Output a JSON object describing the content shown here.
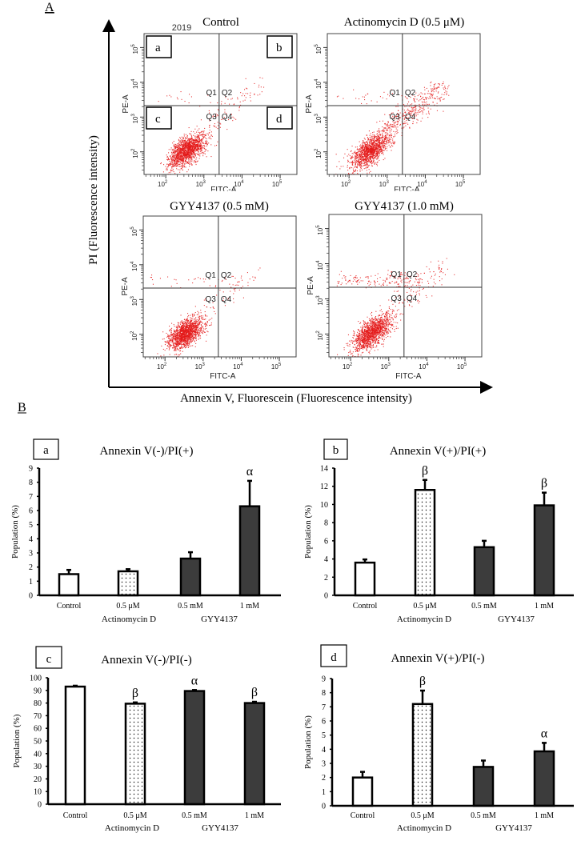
{
  "panel_labels": {
    "A": "A",
    "B": "B"
  },
  "panel_a_axes": {
    "ylabel": "PI (Fluorescence intensity)",
    "xlabel": "Annexin V, Fluorescein (Fluorescence intensity)"
  },
  "colors": {
    "dots": "#e41a1a",
    "dark_bar": "#3c3c3c",
    "open_bar": "#ffffff"
  },
  "chart_data": [
    {
      "type": "scatter",
      "title": "Control",
      "annotation": "2019",
      "xlabel": "FITC-A",
      "ylabel": "PE-A",
      "scale": "log",
      "tick_base": "10",
      "tick_exponents": [
        2,
        3,
        4,
        5
      ],
      "quadrants": [
        "Q1",
        "Q2",
        "Q3",
        "Q4"
      ],
      "region_labels": [
        "a",
        "b",
        "c",
        "d"
      ]
    },
    {
      "type": "scatter",
      "title": "Actinomycin D (0.5 μM)",
      "xlabel": "FITC-A",
      "ylabel": "PE-A",
      "scale": "log",
      "tick_base": "10",
      "tick_exponents": [
        2,
        3,
        4,
        5
      ],
      "quadrants": [
        "Q1",
        "Q2",
        "Q3",
        "Q4"
      ]
    },
    {
      "type": "scatter",
      "title": "GYY4137 (0.5 mM)",
      "xlabel": "FITC-A",
      "ylabel": "PE-A",
      "scale": "log",
      "tick_base": "10",
      "tick_exponents": [
        2,
        3,
        4,
        5
      ],
      "quadrants": [
        "Q1",
        "Q2",
        "Q3",
        "Q4"
      ]
    },
    {
      "type": "scatter",
      "title": "GYY4137 (1.0 mM)",
      "xlabel": "FITC-A",
      "ylabel": "PE-A",
      "scale": "log",
      "tick_base": "10",
      "tick_exponents": [
        2,
        3,
        4,
        5
      ],
      "quadrants": [
        "Q1",
        "Q2",
        "Q3",
        "Q4"
      ]
    },
    {
      "type": "bar",
      "panel_letter": "a",
      "title": "Annexin V(-)/PI(+)",
      "ylabel": "Population (%)",
      "categories": [
        "Control",
        "0.5 μM",
        "0.5 mM",
        "1 mM"
      ],
      "groups": [
        "Actinomycin D",
        "GYY4137"
      ],
      "values": [
        1.5,
        1.7,
        2.6,
        6.3
      ],
      "errors": [
        0.3,
        0.15,
        0.45,
        1.8
      ],
      "significance": [
        "",
        "",
        "",
        "α"
      ],
      "ylim": [
        0,
        9
      ],
      "ytick_step": 1
    },
    {
      "type": "bar",
      "panel_letter": "b",
      "title": "Annexin V(+)/PI(+)",
      "ylabel": "Population (%)",
      "categories": [
        "Control",
        "0.5 μM",
        "0.5 mM",
        "1 mM"
      ],
      "groups": [
        "Actinomycin D",
        "GYY4137"
      ],
      "values": [
        3.6,
        11.6,
        5.3,
        9.9
      ],
      "errors": [
        0.35,
        1.1,
        0.7,
        1.4
      ],
      "significance": [
        "",
        "β",
        "",
        "β"
      ],
      "ylim": [
        0,
        14
      ],
      "ytick_step": 2
    },
    {
      "type": "bar",
      "panel_letter": "c",
      "title": "Annexin V(-)/PI(-)",
      "ylabel": "Population (%)",
      "categories": [
        "Control",
        "0.5 μM",
        "0.5 mM",
        "1 mM"
      ],
      "groups": [
        "Actinomycin D",
        "GYY4137"
      ],
      "values": [
        93,
        79.5,
        89.5,
        80
      ],
      "errors": [
        0.7,
        1.0,
        0.8,
        1.0
      ],
      "significance": [
        "",
        "β",
        "α",
        "β"
      ],
      "ylim": [
        0,
        100
      ],
      "ytick_step": 10
    },
    {
      "type": "bar",
      "panel_letter": "d",
      "title": "Annexin V(+)/PI(-)",
      "ylabel": "Population (%)",
      "categories": [
        "Control",
        "0.5 μM",
        "0.5 mM",
        "1 mM"
      ],
      "groups": [
        "Actinomycin D",
        "GYY4137"
      ],
      "values": [
        2.0,
        7.2,
        2.75,
        3.85
      ],
      "errors": [
        0.4,
        0.95,
        0.45,
        0.6
      ],
      "significance": [
        "",
        "β",
        "",
        "α"
      ],
      "ylim": [
        0,
        9
      ],
      "ytick_step": 1
    }
  ]
}
